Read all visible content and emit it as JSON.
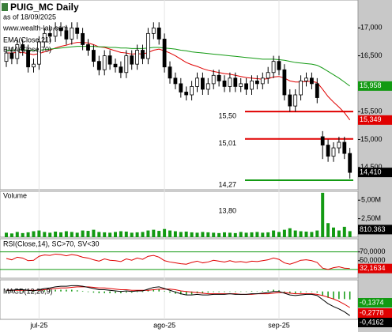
{
  "chart_data": {
    "type": "candlestick",
    "title": "PUIG_MC Daily",
    "subtitle": "as of 18/09/2025",
    "source": "www.wealth-lab.com",
    "xticks": [
      {
        "value": 6,
        "label": "jul-25"
      },
      {
        "value": 29,
        "label": "ago-25"
      },
      {
        "value": 50,
        "label": "sep-25"
      }
    ],
    "open": [
      16.4,
      16.55,
      16.45,
      16.7,
      16.6,
      16.3,
      16.35,
      16.75,
      16.9,
      16.85,
      17.0,
      16.95,
      16.8,
      17.0,
      16.9,
      16.7,
      16.6,
      16.4,
      16.25,
      16.5,
      16.35,
      16.3,
      16.2,
      16.5,
      16.35,
      16.6,
      16.45,
      16.9,
      17.0,
      16.8,
      16.3,
      16.1,
      16.0,
      15.85,
      15.8,
      15.95,
      16.1,
      15.9,
      16.0,
      16.15,
      16.05,
      15.95,
      16.1,
      15.95,
      16.0,
      15.9,
      16.05,
      16.0,
      16.1,
      16.2,
      16.4,
      16.25,
      15.8,
      15.6,
      15.8,
      16.05,
      16.1,
      16.0,
      15.05,
      14.9,
      14.7,
      14.85,
      14.95,
      14.75
    ],
    "high": [
      16.65,
      16.65,
      16.8,
      16.8,
      16.7,
      16.45,
      16.85,
      17.0,
      17.0,
      17.1,
      17.1,
      17.05,
      17.1,
      17.1,
      17.0,
      16.8,
      16.7,
      16.5,
      16.6,
      16.6,
      16.45,
      16.4,
      16.6,
      16.6,
      16.7,
      16.7,
      17.0,
      17.1,
      17.1,
      16.9,
      16.4,
      16.2,
      16.1,
      15.95,
      16.05,
      16.2,
      16.2,
      16.1,
      16.25,
      16.25,
      16.15,
      16.2,
      16.2,
      16.1,
      16.1,
      16.15,
      16.15,
      16.2,
      16.3,
      16.5,
      16.5,
      16.35,
      15.9,
      15.9,
      16.15,
      16.2,
      16.2,
      16.1,
      15.15,
      15.0,
      14.95,
      15.05,
      15.05,
      14.85
    ],
    "low": [
      16.3,
      16.35,
      16.35,
      16.5,
      16.2,
      16.2,
      16.25,
      16.65,
      16.75,
      16.75,
      16.85,
      16.7,
      16.7,
      16.8,
      16.6,
      16.5,
      16.3,
      16.15,
      16.15,
      16.25,
      16.2,
      16.1,
      16.1,
      16.25,
      16.25,
      16.35,
      16.35,
      16.8,
      16.7,
      16.2,
      16.0,
      15.9,
      15.75,
      15.7,
      15.7,
      15.85,
      15.8,
      15.8,
      15.9,
      15.95,
      15.85,
      15.85,
      15.85,
      15.85,
      15.8,
      15.8,
      15.9,
      15.9,
      16.0,
      16.1,
      16.15,
      15.7,
      15.5,
      15.5,
      15.7,
      15.95,
      15.9,
      15.65,
      14.65,
      14.6,
      14.6,
      14.75,
      14.65,
      14.3
    ],
    "close": [
      16.55,
      16.45,
      16.7,
      16.6,
      16.3,
      16.35,
      16.75,
      16.9,
      16.85,
      17.0,
      16.95,
      16.8,
      17.0,
      16.9,
      16.7,
      16.6,
      16.4,
      16.25,
      16.5,
      16.35,
      16.3,
      16.2,
      16.5,
      16.35,
      16.6,
      16.45,
      16.9,
      17.0,
      16.8,
      16.3,
      16.1,
      16.0,
      15.85,
      15.8,
      15.95,
      16.1,
      15.9,
      16.0,
      16.15,
      16.05,
      15.95,
      16.1,
      15.95,
      16.0,
      15.9,
      16.05,
      16.0,
      16.1,
      16.2,
      16.4,
      16.25,
      15.8,
      15.6,
      15.8,
      16.05,
      16.1,
      16.0,
      15.75,
      14.9,
      14.7,
      14.85,
      14.95,
      14.75,
      14.41
    ],
    "last_label": "14,410",
    "up_color": "#ffffff",
    "down_color": "#000000",
    "ylim": [
      14.1,
      17.5
    ],
    "yticks": [
      {
        "value": 17,
        "label": "17,000"
      },
      {
        "value": 16.5,
        "label": "16,500"
      },
      {
        "value": 15.5,
        "label": "15,500"
      },
      {
        "value": 15,
        "label": "15,000"
      },
      {
        "value": 14.5,
        "label": "14,500"
      }
    ],
    "series": [
      {
        "name": "EMA(Close,21)",
        "color": "#e00000",
        "last_label": "15,349",
        "values": [
          16.55,
          16.55,
          16.56,
          16.56,
          16.54,
          16.52,
          16.54,
          16.57,
          16.6,
          16.64,
          16.67,
          16.69,
          16.72,
          16.74,
          16.74,
          16.73,
          16.7,
          16.66,
          16.65,
          16.62,
          16.59,
          16.56,
          16.55,
          16.53,
          16.54,
          16.53,
          16.56,
          16.6,
          16.62,
          16.59,
          16.55,
          16.5,
          16.44,
          16.38,
          16.34,
          16.31,
          16.27,
          16.24,
          16.22,
          16.2,
          16.18,
          16.17,
          16.15,
          16.13,
          16.11,
          16.1,
          16.09,
          16.08,
          16.09,
          16.12,
          16.13,
          16.1,
          16.05,
          16.03,
          16.03,
          16.04,
          16.04,
          16.02,
          15.9,
          15.77,
          15.67,
          15.58,
          15.48,
          15.349
        ]
      },
      {
        "name": "EMA(Close,70)",
        "color": "#139a13",
        "last_label": "15,958",
        "values": [
          16.6,
          16.6,
          16.61,
          16.61,
          16.6,
          16.6,
          16.6,
          16.61,
          16.62,
          16.63,
          16.64,
          16.65,
          16.66,
          16.67,
          16.67,
          16.67,
          16.67,
          16.66,
          16.66,
          16.65,
          16.65,
          16.64,
          16.64,
          16.63,
          16.63,
          16.63,
          16.64,
          16.65,
          16.65,
          16.64,
          16.63,
          16.62,
          16.6,
          16.59,
          16.57,
          16.56,
          16.55,
          16.54,
          16.53,
          16.52,
          16.51,
          16.5,
          16.49,
          16.48,
          16.47,
          16.46,
          16.45,
          16.44,
          16.44,
          16.44,
          16.43,
          16.42,
          16.4,
          16.38,
          16.37,
          16.36,
          16.35,
          16.33,
          16.28,
          16.22,
          16.16,
          16.1,
          16.03,
          15.958
        ]
      }
    ],
    "levels": [
      {
        "value": 15.5,
        "label": "15,50",
        "color": "#e00000"
      },
      {
        "value": 15.01,
        "label": "15,01",
        "color": "#e00000"
      },
      {
        "value": 14.27,
        "label": "14,27",
        "color": "#139a13"
      },
      {
        "value": 13.8,
        "label": "13,80",
        "color": "#139a13"
      }
    ],
    "volume": {
      "title": "Volume",
      "color": "#139a13",
      "last_label": "810.363",
      "ylim": [
        0,
        6200000
      ],
      "yticks": [
        {
          "value": 5000000,
          "label": "5,00M"
        },
        {
          "value": 2500000,
          "label": "2,50M"
        }
      ],
      "values": [
        600000,
        500000,
        700000,
        550000,
        650000,
        800000,
        900000,
        700000,
        600000,
        750000,
        650000,
        800000,
        700000,
        600000,
        900000,
        850000,
        1000000,
        700000,
        650000,
        600000,
        700000,
        800000,
        750000,
        600000,
        650000,
        700000,
        900000,
        1000000,
        850000,
        1100000,
        900000,
        800000,
        700000,
        750000,
        650000,
        600000,
        700000,
        650000,
        600000,
        550000,
        650000,
        600000,
        550000,
        700000,
        600000,
        650000,
        700000,
        600000,
        650000,
        900000,
        700000,
        1000000,
        1200000,
        900000,
        800000,
        750000,
        700000,
        900000,
        6000000,
        1900000,
        1300000,
        900000,
        1400000,
        810363
      ]
    },
    "rsi": {
      "title": "RSI(Close,14), SC>70, SV<30",
      "color": "#e00000",
      "level_color": "#139a13",
      "last_label": "32,1634",
      "ylim": [
        10,
        100
      ],
      "yticks": [
        {
          "value": 70,
          "label": "70,0000"
        },
        {
          "value": 50,
          "label": "50,0000"
        }
      ],
      "levels": [
        70,
        30
      ],
      "values": [
        55,
        52,
        58,
        56,
        50,
        51,
        60,
        63,
        62,
        65,
        64,
        61,
        64,
        62,
        58,
        56,
        52,
        49,
        54,
        51,
        50,
        48,
        54,
        51,
        56,
        53,
        60,
        62,
        58,
        50,
        47,
        45,
        43,
        42,
        46,
        49,
        45,
        47,
        51,
        49,
        47,
        50,
        47,
        48,
        46,
        49,
        48,
        50,
        52,
        56,
        53,
        45,
        42,
        46,
        51,
        52,
        50,
        46,
        33,
        30,
        34,
        36,
        33,
        32.1634
      ]
    },
    "macd": {
      "title": "MACD(12,26,9)",
      "ylim": [
        -0.48,
        0.2
      ],
      "histogram": {
        "color": "#139a13",
        "last_label": "-0,1374",
        "values": [
          0,
          0,
          0.01,
          0.01,
          0,
          -0.01,
          0.01,
          0.02,
          0.02,
          0.03,
          0.03,
          0.03,
          0.03,
          0.02,
          0.01,
          -0.01,
          -0.02,
          -0.03,
          -0.03,
          -0.03,
          -0.03,
          -0.03,
          -0.02,
          -0.02,
          -0.01,
          -0.01,
          0.02,
          0.04,
          0.04,
          0.01,
          -0.02,
          -0.04,
          -0.05,
          -0.06,
          -0.05,
          -0.03,
          -0.03,
          -0.02,
          -0.01,
          -0.01,
          -0.01,
          0,
          -0.01,
          0,
          0,
          0.01,
          0,
          0.01,
          0.02,
          0.03,
          0.02,
          -0.01,
          -0.03,
          -0.03,
          -0.02,
          -0.01,
          -0.01,
          -0.02,
          -0.07,
          -0.11,
          -0.13,
          -0.13,
          -0.13,
          -0.1374
        ]
      },
      "signal": {
        "color": "#e00000",
        "last_label": "-0,2778",
        "values": [
          0.02,
          0.02,
          0.02,
          0.02,
          0.02,
          0.02,
          0.02,
          0.03,
          0.04,
          0.05,
          0.06,
          0.06,
          0.07,
          0.08,
          0.08,
          0.08,
          0.07,
          0.06,
          0.06,
          0.05,
          0.04,
          0.03,
          0.03,
          0.02,
          0.02,
          0.02,
          0.02,
          0.03,
          0.04,
          0.04,
          0.04,
          0.03,
          0.01,
          0,
          -0.01,
          -0.02,
          -0.03,
          -0.04,
          -0.04,
          -0.04,
          -0.04,
          -0.04,
          -0.04,
          -0.05,
          -0.05,
          -0.05,
          -0.04,
          -0.04,
          -0.04,
          -0.03,
          -0.02,
          -0.02,
          -0.03,
          -0.04,
          -0.04,
          -0.04,
          -0.04,
          -0.05,
          -0.07,
          -0.1,
          -0.13,
          -0.17,
          -0.22,
          -0.2778
        ]
      },
      "line": {
        "color": "#000000",
        "last_label": "-0,4162",
        "values": [
          0.02,
          0.02,
          0.03,
          0.03,
          0.02,
          0.01,
          0.03,
          0.05,
          0.06,
          0.08,
          0.09,
          0.09,
          0.1,
          0.1,
          0.09,
          0.07,
          0.05,
          0.03,
          0.03,
          0.02,
          0.01,
          0,
          0.01,
          0,
          0.01,
          0.01,
          0.04,
          0.07,
          0.08,
          0.05,
          0.02,
          -0.01,
          -0.04,
          -0.06,
          -0.06,
          -0.05,
          -0.06,
          -0.06,
          -0.05,
          -0.05,
          -0.05,
          -0.04,
          -0.05,
          -0.05,
          -0.05,
          -0.04,
          -0.04,
          -0.03,
          -0.02,
          0,
          0,
          -0.03,
          -0.06,
          -0.07,
          -0.06,
          -0.05,
          -0.05,
          -0.07,
          -0.14,
          -0.21,
          -0.26,
          -0.3,
          -0.35,
          -0.4162
        ]
      }
    }
  }
}
